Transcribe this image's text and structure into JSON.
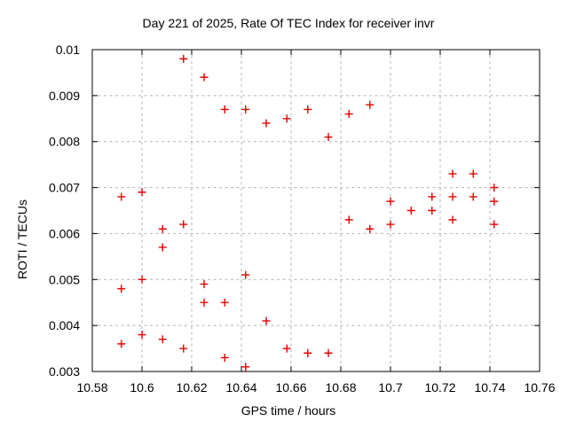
{
  "window": {
    "background": "#ffffff"
  },
  "colors": {
    "marker": "#e60000",
    "grid": "#b3b3b3",
    "frame": "#000000",
    "text": "#000000"
  },
  "chart_data": {
    "type": "scatter",
    "title": "Day 221 of 2025, Rate Of TEC Index for receiver invr",
    "xlabel": "GPS time / hours",
    "ylabel": "ROTI / TECUs",
    "xlim": [
      10.58,
      10.76
    ],
    "ylim": [
      0.003,
      0.01
    ],
    "xtick_values": [
      10.58,
      10.6,
      10.62,
      10.64,
      10.66,
      10.68,
      10.7,
      10.72,
      10.74,
      10.76
    ],
    "xtick_labels": [
      "10.58",
      "10.6",
      "10.62",
      "10.64",
      "10.66",
      "10.68",
      "10.7",
      "10.72",
      "10.74",
      "10.76"
    ],
    "ytick_values": [
      0.003,
      0.004,
      0.005,
      0.006,
      0.007,
      0.008,
      0.009,
      0.01
    ],
    "ytick_labels": [
      "0.003",
      "0.004",
      "0.005",
      "0.006",
      "0.007",
      "0.008",
      "0.009",
      "0.01"
    ],
    "grid": true,
    "legend": "none",
    "marker": {
      "shape": "plus",
      "size": 9
    },
    "series": [
      {
        "name": "ROTI",
        "points": [
          [
            10.5917,
            0.0036
          ],
          [
            10.5917,
            0.0048
          ],
          [
            10.5917,
            0.0068
          ],
          [
            10.6,
            0.0038
          ],
          [
            10.6,
            0.005
          ],
          [
            10.6,
            0.0069
          ],
          [
            10.6083,
            0.0037
          ],
          [
            10.6083,
            0.0057
          ],
          [
            10.6083,
            0.0061
          ],
          [
            10.6167,
            0.0035
          ],
          [
            10.6167,
            0.0062
          ],
          [
            10.6167,
            0.0098
          ],
          [
            10.625,
            0.0045
          ],
          [
            10.625,
            0.0049
          ],
          [
            10.625,
            0.0094
          ],
          [
            10.6333,
            0.0033
          ],
          [
            10.6333,
            0.0045
          ],
          [
            10.6333,
            0.0087
          ],
          [
            10.6417,
            0.0031
          ],
          [
            10.6417,
            0.0051
          ],
          [
            10.6417,
            0.0087
          ],
          [
            10.65,
            0.0041
          ],
          [
            10.65,
            0.0084
          ],
          [
            10.6583,
            0.0035
          ],
          [
            10.6583,
            0.0085
          ],
          [
            10.6667,
            0.0034
          ],
          [
            10.6667,
            0.0087
          ],
          [
            10.675,
            0.0034
          ],
          [
            10.675,
            0.0081
          ],
          [
            10.6833,
            0.0063
          ],
          [
            10.6833,
            0.0086
          ],
          [
            10.6917,
            0.0061
          ],
          [
            10.6917,
            0.0088
          ],
          [
            10.7,
            0.0062
          ],
          [
            10.7,
            0.0067
          ],
          [
            10.7083,
            0.0065
          ],
          [
            10.7167,
            0.0065
          ],
          [
            10.7167,
            0.0068
          ],
          [
            10.725,
            0.0063
          ],
          [
            10.725,
            0.0068
          ],
          [
            10.725,
            0.0073
          ],
          [
            10.7333,
            0.0068
          ],
          [
            10.7333,
            0.0073
          ],
          [
            10.7417,
            0.0062
          ],
          [
            10.7417,
            0.0067
          ],
          [
            10.7417,
            0.007
          ]
        ]
      }
    ]
  }
}
